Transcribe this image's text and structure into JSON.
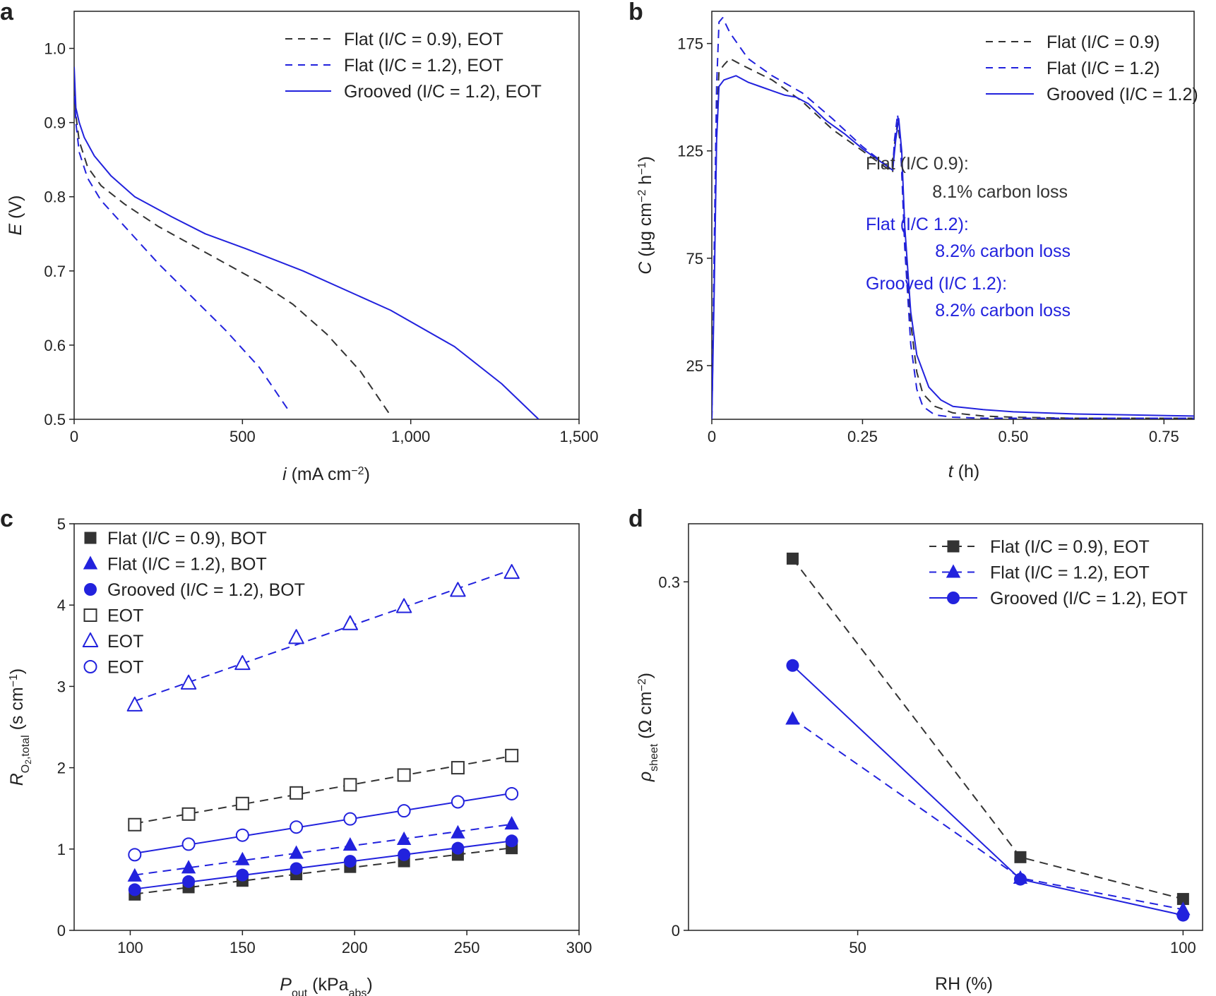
{
  "colors": {
    "black": "#333333",
    "blue": "#2222dd",
    "axis": "#222222"
  },
  "chart_data": [
    {
      "panel": "a",
      "type": "line",
      "xlabel_italic": "i",
      "xlabel_rest": " (mA cm",
      "xlabel_sup": "−2",
      "xlabel_end": ")",
      "ylabel_italic": "E",
      "ylabel_rest": " (V)",
      "xlim": [
        0,
        1500
      ],
      "ylim": [
        0.5,
        1.05
      ],
      "xticks": [
        {
          "value": 0,
          "label": "0"
        },
        {
          "value": 500,
          "label": "500"
        },
        {
          "value": 1000,
          "label": "1,000"
        },
        {
          "value": 1500,
          "label": "1,500"
        }
      ],
      "yticks": [
        {
          "value": 0.5,
          "label": "0.5"
        },
        {
          "value": 0.6,
          "label": "0.6"
        },
        {
          "value": 0.7,
          "label": "0.7"
        },
        {
          "value": 0.8,
          "label": "0.8"
        },
        {
          "value": 0.9,
          "label": "0.9"
        },
        {
          "value": 1.0,
          "label": "1.0"
        }
      ],
      "legend_position": "top-right",
      "series": [
        {
          "name": "Flat (I/C = 0.9), EOT",
          "color": "black",
          "style": "dashed",
          "x": [
            0,
            5,
            15,
            40,
            80,
            150,
            250,
            350,
            450,
            550,
            650,
            750,
            850,
            940
          ],
          "y": [
            0.965,
            0.91,
            0.875,
            0.84,
            0.815,
            0.79,
            0.76,
            0.735,
            0.71,
            0.685,
            0.655,
            0.615,
            0.565,
            0.505
          ]
        },
        {
          "name": "Flat (I/C = 1.2), EOT",
          "color": "blue",
          "style": "dashed",
          "x": [
            0,
            5,
            15,
            40,
            80,
            150,
            250,
            350,
            450,
            550,
            640
          ],
          "y": [
            0.955,
            0.9,
            0.86,
            0.825,
            0.795,
            0.76,
            0.71,
            0.665,
            0.62,
            0.57,
            0.51
          ]
        },
        {
          "name": "Grooved (I/C = 1.2), EOT",
          "color": "blue",
          "style": "solid",
          "x": [
            0,
            5,
            15,
            30,
            60,
            110,
            180,
            290,
            390,
            510,
            680,
            940,
            1130,
            1270,
            1380
          ],
          "y": [
            0.975,
            0.92,
            0.9,
            0.88,
            0.855,
            0.828,
            0.8,
            0.773,
            0.75,
            0.73,
            0.7,
            0.647,
            0.598,
            0.548,
            0.5
          ]
        }
      ]
    },
    {
      "panel": "b",
      "type": "line",
      "xlabel_italic": "t",
      "xlabel_rest": " (h)",
      "ylabel_italic": "C",
      "ylabel_rest": " (μg cm",
      "ylabel_sup": "−2",
      "ylabel_mid": " h",
      "ylabel_sup2": "−1",
      "ylabel_end": ")",
      "xlim": [
        0,
        0.8
      ],
      "ylim": [
        0,
        190
      ],
      "xticks": [
        {
          "value": 0,
          "label": "0"
        },
        {
          "value": 0.25,
          "label": "0.25"
        },
        {
          "value": 0.5,
          "label": "0.50"
        },
        {
          "value": 0.75,
          "label": "0.75"
        }
      ],
      "yticks": [
        {
          "value": 25,
          "label": "25"
        },
        {
          "value": 75,
          "label": "75"
        },
        {
          "value": 125,
          "label": "125"
        },
        {
          "value": 175,
          "label": "175"
        }
      ],
      "legend_position": "top-right",
      "series": [
        {
          "name": "Flat (I/C = 0.9)",
          "color": "black",
          "style": "dashed",
          "x": [
            0,
            0.004,
            0.008,
            0.012,
            0.02,
            0.03,
            0.05,
            0.1,
            0.15,
            0.2,
            0.25,
            0.3,
            0.303,
            0.308,
            0.313,
            0.32,
            0.33,
            0.34,
            0.35,
            0.37,
            0.4,
            0.45,
            0.5,
            0.6,
            0.7,
            0.8
          ],
          "y": [
            0,
            70,
            140,
            162,
            165,
            168,
            165,
            158,
            148,
            135,
            125,
            115,
            128,
            138,
            128,
            85,
            45,
            22,
            12,
            6,
            3,
            1.5,
            1,
            0.5,
            0.5,
            0.5
          ]
        },
        {
          "name": "Flat (I/C = 1.2)",
          "color": "blue",
          "style": "dashed",
          "x": [
            0,
            0.004,
            0.008,
            0.012,
            0.018,
            0.03,
            0.06,
            0.1,
            0.15,
            0.2,
            0.25,
            0.3,
            0.303,
            0.308,
            0.313,
            0.32,
            0.33,
            0.34,
            0.35,
            0.37,
            0.4,
            0.45,
            0.5,
            0.6,
            0.7,
            0.8
          ],
          "y": [
            0,
            80,
            155,
            185,
            187,
            180,
            168,
            160,
            152,
            140,
            127,
            116,
            130,
            142,
            130,
            80,
            35,
            14,
            6,
            2,
            1,
            0.5,
            0.5,
            0.5,
            0.5,
            0.5
          ]
        },
        {
          "name": "Grooved (I/C = 1.2)",
          "color": "blue",
          "style": "solid",
          "x": [
            0,
            0.004,
            0.008,
            0.012,
            0.02,
            0.04,
            0.06,
            0.08,
            0.1,
            0.12,
            0.14,
            0.16,
            0.19,
            0.22,
            0.25,
            0.28,
            0.3,
            0.305,
            0.31,
            0.315,
            0.32,
            0.33,
            0.34,
            0.36,
            0.38,
            0.4,
            0.45,
            0.5,
            0.6,
            0.7,
            0.8
          ],
          "y": [
            0,
            60,
            130,
            155,
            158,
            160,
            157,
            155,
            153,
            151,
            150,
            147,
            139,
            133,
            126,
            120,
            116,
            130,
            140,
            125,
            90,
            50,
            30,
            15,
            9,
            6,
            4.5,
            3.5,
            2.5,
            2,
            1.5
          ]
        }
      ],
      "annotations": [
        {
          "text": "Flat (I/C 0.9):",
          "color": "black",
          "x": 1226,
          "y": 232,
          "anchor": "start"
        },
        {
          "text": "8.1% carbon loss",
          "color": "black",
          "x": 1512,
          "y": 272,
          "anchor": "end"
        },
        {
          "text": "Flat (I/C 1.2):",
          "color": "blue",
          "x": 1226,
          "y": 318,
          "anchor": "start"
        },
        {
          "text": "8.2% carbon loss",
          "color": "blue",
          "x": 1516,
          "y": 356,
          "anchor": "end"
        },
        {
          "text": "Grooved (I/C 1.2):",
          "color": "blue",
          "x": 1226,
          "y": 402,
          "anchor": "start"
        },
        {
          "text": "8.2% carbon loss",
          "color": "blue",
          "x": 1516,
          "y": 440,
          "anchor": "end"
        }
      ]
    },
    {
      "panel": "c",
      "type": "scatter",
      "xlabel_italic": "P",
      "xlabel_sub": "out",
      "xlabel_rest": " (kPa",
      "xlabel_sub2": "abs",
      "xlabel_end": ")",
      "ylabel_italic": "R",
      "ylabel_sub": "O",
      "ylabel_subsub": "2",
      "ylabel_sub_rest": ",total",
      "ylabel_rest": " (s cm",
      "ylabel_sup": "−1",
      "ylabel_end": ")",
      "xlim": [
        75,
        300
      ],
      "ylim": [
        0,
        5
      ],
      "xticks": [
        {
          "value": 100,
          "label": "100"
        },
        {
          "value": 150,
          "label": "150"
        },
        {
          "value": 200,
          "label": "200"
        },
        {
          "value": 250,
          "label": "250"
        },
        {
          "value": 300,
          "label": "300"
        }
      ],
      "yticks": [
        {
          "value": 0,
          "label": "0"
        },
        {
          "value": 1,
          "label": "1"
        },
        {
          "value": 2,
          "label": "2"
        },
        {
          "value": 3,
          "label": "3"
        },
        {
          "value": 4,
          "label": "4"
        },
        {
          "value": 5,
          "label": "5"
        }
      ],
      "legend_position": "top-left",
      "x": [
        102,
        126,
        150,
        174,
        198,
        222,
        246,
        270
      ],
      "series": [
        {
          "name": "Flat (I/C = 0.9), BOT",
          "color": "black",
          "marker": "square",
          "filled": true,
          "style": "dashed",
          "y": [
            0.44,
            0.53,
            0.61,
            0.69,
            0.78,
            0.85,
            0.93,
            1.01
          ]
        },
        {
          "name": "Flat (I/C = 1.2), BOT",
          "color": "blue",
          "marker": "triangle",
          "filled": true,
          "style": "dashed",
          "y": [
            0.67,
            0.77,
            0.87,
            0.95,
            1.05,
            1.12,
            1.2,
            1.31
          ]
        },
        {
          "name": "Grooved (I/C = 1.2), BOT",
          "color": "blue",
          "marker": "circle",
          "filled": true,
          "style": "solid",
          "y": [
            0.5,
            0.6,
            0.68,
            0.76,
            0.85,
            0.93,
            1.01,
            1.1
          ]
        },
        {
          "name": "EOT",
          "color": "black",
          "marker": "square",
          "filled": false,
          "style": "dashed",
          "y": [
            1.3,
            1.43,
            1.56,
            1.69,
            1.79,
            1.91,
            2.0,
            2.15
          ]
        },
        {
          "name": "EOT",
          "color": "blue",
          "marker": "triangle",
          "filled": false,
          "style": "dashed",
          "y": [
            2.77,
            3.04,
            3.28,
            3.6,
            3.77,
            3.98,
            4.18,
            4.4
          ]
        },
        {
          "name": "EOT",
          "color": "blue",
          "marker": "circle",
          "filled": false,
          "style": "solid",
          "y": [
            0.93,
            1.06,
            1.17,
            1.27,
            1.37,
            1.47,
            1.58,
            1.68
          ]
        }
      ]
    },
    {
      "panel": "d",
      "type": "line",
      "xlabel": "RH (%)",
      "ylabel_italic": "ρ",
      "ylabel_sub": "sheet",
      "ylabel_rest": " (Ω cm",
      "ylabel_sup": "−2",
      "ylabel_end": ")",
      "xlim": [
        24,
        103
      ],
      "ylim": [
        0,
        0.35
      ],
      "xticks": [
        {
          "value": 50,
          "label": "50"
        },
        {
          "value": 100,
          "label": "100"
        }
      ],
      "yticks": [
        {
          "value": 0,
          "label": "0"
        },
        {
          "value": 0.3,
          "label": "0.3"
        }
      ],
      "legend_position": "top-right",
      "series": [
        {
          "name": "Flat (I/C = 0.9), EOT",
          "color": "black",
          "marker": "square",
          "style": "dashed",
          "x": [
            40,
            75,
            100
          ],
          "y": [
            0.32,
            0.063,
            0.027
          ]
        },
        {
          "name": "Flat (I/C = 1.2), EOT",
          "color": "blue",
          "marker": "triangle",
          "style": "dashed",
          "x": [
            40,
            75,
            100
          ],
          "y": [
            0.182,
            0.045,
            0.018
          ]
        },
        {
          "name": "Grooved (I/C = 1.2), EOT",
          "color": "blue",
          "marker": "circle",
          "style": "solid",
          "x": [
            40,
            75,
            100
          ],
          "y": [
            0.228,
            0.044,
            0.013
          ]
        }
      ]
    }
  ]
}
